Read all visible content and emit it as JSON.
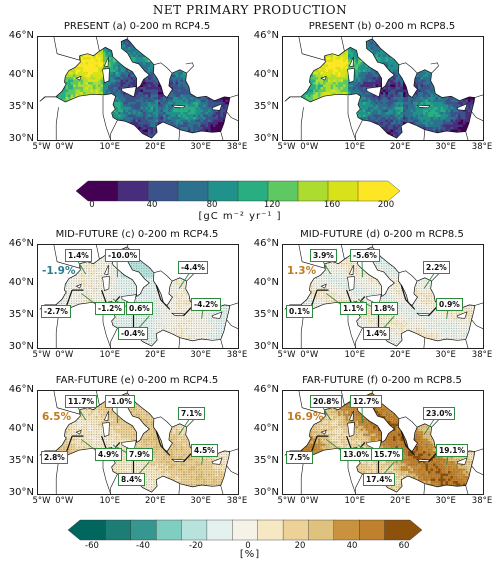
{
  "title": "NET PRIMARY PRODUCTION",
  "lat_labels": [
    "46°N",
    "40°N",
    "35°N",
    "30°N"
  ],
  "lon_labels": [
    "5°W",
    "0°W",
    "10°E",
    "20°E",
    "30°E",
    "38°E"
  ],
  "panels": [
    {
      "title": "PRESENT (a) 0-200 m RCP4.5",
      "type": "absolute",
      "basin": "",
      "callouts": []
    },
    {
      "title": "PRESENT (b) 0-200 m RCP8.5",
      "type": "absolute",
      "basin": "",
      "callouts": []
    },
    {
      "title": "MID-FUTURE (c) 0-200 m RCP4.5",
      "type": "change",
      "basin": "-1.9%",
      "basin_color": "#2a7d8c",
      "callouts": [
        "1.4%",
        "-10.0%",
        "-4.4%",
        "-4.2%",
        "-2.7%",
        "-1.2%",
        "0.6%",
        "-0.4%"
      ]
    },
    {
      "title": "MID-FUTURE (d) 0-200 m RCP8.5",
      "type": "change",
      "basin": "1.3%",
      "basin_color": "#c07a1f",
      "callouts": [
        "3.9%",
        "-5.6%",
        "2.2%",
        "0.9%",
        "0.1%",
        "1.1%",
        "1.8%",
        "1.4%"
      ]
    },
    {
      "title": "FAR-FUTURE (e) 0-200 m RCP4.5",
      "type": "change",
      "basin": "6.5%",
      "basin_color": "#c07a1f",
      "callouts": [
        "11.7%",
        "-1.0%",
        "7.1%",
        "4.5%",
        "2.8%",
        "4.9%",
        "7.9%",
        "8.4%"
      ]
    },
    {
      "title": "FAR-FUTURE (f) 0-200 m RCP8.5",
      "type": "change",
      "basin": "16.9%",
      "basin_color": "#c07a1f",
      "callouts": [
        "20.8%",
        "12.7%",
        "23.0%",
        "19.1%",
        "7.5%",
        "13.0%",
        "15.7%",
        "17.4%"
      ]
    }
  ],
  "colorbar_npp": {
    "ticks": [
      "0",
      "40",
      "80",
      "120",
      "160",
      "200"
    ],
    "unit": "[gC m⁻² yr⁻¹ ]",
    "colors": [
      "#440154",
      "#472d7b",
      "#3b528b",
      "#2c728e",
      "#21918c",
      "#28ae80",
      "#5ec962",
      "#addc30",
      "#d8e219",
      "#fde725"
    ]
  },
  "colorbar_change": {
    "ticks": [
      "-60",
      "-40",
      "-20",
      "0",
      "20",
      "40",
      "60"
    ],
    "unit": "[%]",
    "colors": [
      "#01665e",
      "#1b7d74",
      "#35978f",
      "#80cdc1",
      "#b7e3dc",
      "#e3f2ef",
      "#f5f2e8",
      "#f6e8c3",
      "#ecd198",
      "#dfc27d",
      "#c9923f",
      "#bf812d",
      "#8c510a"
    ]
  }
}
